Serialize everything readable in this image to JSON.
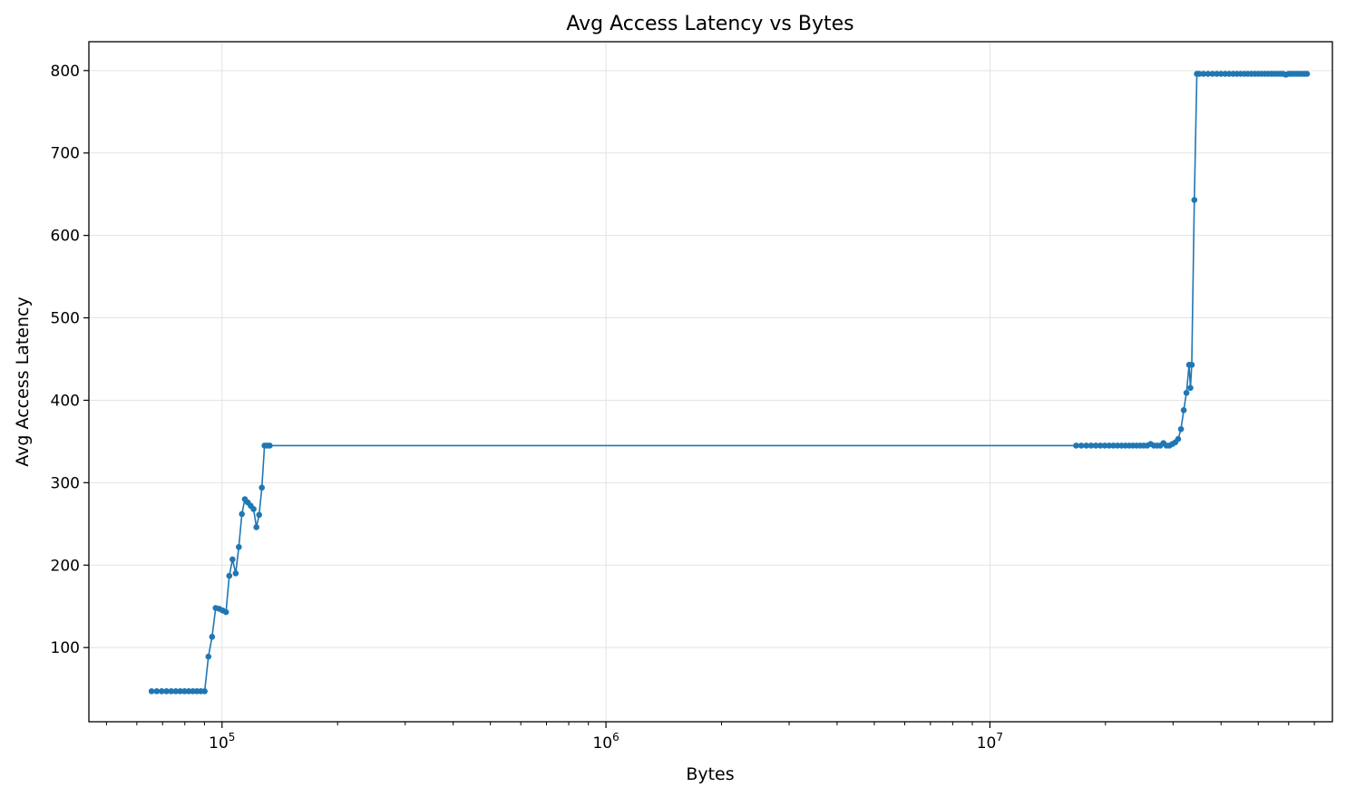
{
  "chart_data": {
    "type": "line",
    "title": "Avg Access Latency vs Bytes",
    "xlabel": "Bytes",
    "ylabel": "Avg Access Latency",
    "xscale": "log",
    "xlim": [
      45000,
      78000000
    ],
    "ylim": [
      10,
      835
    ],
    "grid": true,
    "color": "#1f77b4",
    "marker": "dot",
    "x_tick_labels": [
      {
        "value": 100000,
        "base": "10",
        "exp": "5"
      },
      {
        "value": 1000000,
        "base": "10",
        "exp": "6"
      },
      {
        "value": 10000000,
        "base": "10",
        "exp": "7"
      }
    ],
    "y_ticks": [
      100,
      200,
      300,
      400,
      500,
      600,
      700,
      800
    ],
    "series": [
      {
        "x": [
          65536,
          67584,
          69632,
          71680,
          73728,
          75776,
          77824,
          79872,
          81920,
          83968,
          86016,
          88064,
          90112,
          92160,
          94208,
          96256,
          98304,
          100352,
          102400,
          104448,
          106496,
          108544,
          110592,
          112640,
          114688,
          116736,
          118784,
          120832,
          122880,
          124928,
          126976,
          129024,
          131072,
          133120,
          16777216,
          17301504,
          17825792,
          18350080,
          18874368,
          19398656,
          19922944,
          20447232,
          20971520,
          21495808,
          22020096,
          22544384,
          23068672,
          23592960,
          24117248,
          24641536,
          25165824,
          25690112,
          26214400,
          26738688,
          27262976,
          27787264,
          28311552,
          28835840,
          29360128,
          29884416,
          30408704,
          30932992,
          31457280,
          31981568,
          32505856,
          33030144,
          33292288,
          33554432,
          34078720,
          34603008,
          35127296,
          36000000,
          37000000,
          38000000,
          39000000,
          40000000,
          41000000,
          42000000,
          43000000,
          44000000,
          45000000,
          46000000,
          47000000,
          48000000,
          49000000,
          50000000,
          51000000,
          52000000,
          53000000,
          54000000,
          55000000,
          56000000,
          57000000,
          58000000,
          59000000,
          60000000,
          61000000,
          62000000,
          63000000,
          64000000,
          65000000,
          66000000,
          67000000
        ],
        "y": [
          47,
          47,
          47,
          47,
          47,
          47,
          47,
          47,
          47,
          47,
          47,
          47,
          47,
          89,
          113,
          148,
          147,
          145,
          143,
          187,
          207,
          190,
          222,
          262,
          280,
          276,
          272,
          268,
          246,
          261,
          294,
          345,
          345,
          345,
          345,
          345,
          345,
          345,
          345,
          345,
          345,
          345,
          345,
          345,
          345,
          345,
          345,
          345,
          345,
          345,
          345,
          345,
          347,
          345,
          345,
          345,
          348,
          345,
          345,
          347,
          349,
          353,
          365,
          388,
          409,
          443,
          415,
          443,
          643,
          796,
          796,
          796,
          796,
          796,
          796,
          796,
          796,
          796,
          796,
          796,
          796,
          796,
          796,
          796,
          796,
          796,
          796,
          796,
          796,
          796,
          796,
          796,
          796,
          796,
          795,
          796,
          796,
          796,
          796,
          796,
          796,
          796,
          796
        ]
      }
    ]
  }
}
